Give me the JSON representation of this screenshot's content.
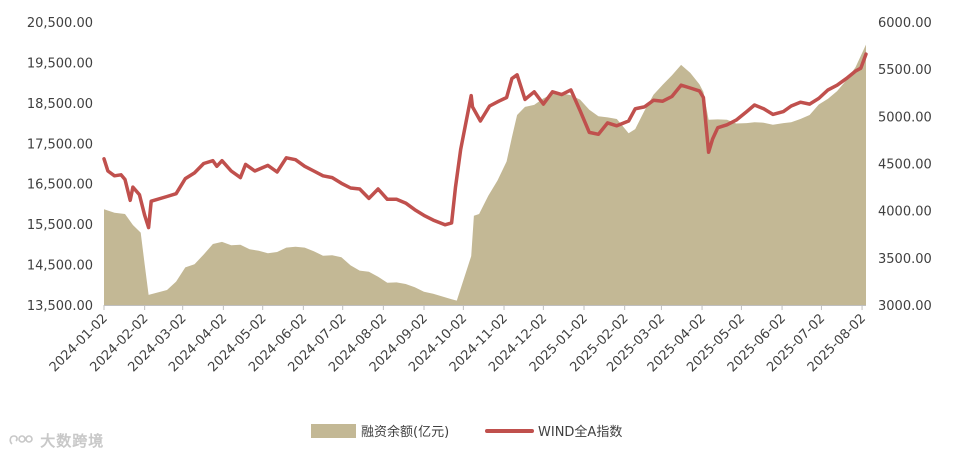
{
  "chart_data": {
    "type": "area+line",
    "title": "",
    "legend": {
      "placement": "bottom-center"
    },
    "grid": false,
    "x": [
      "2024-01-02",
      "2024-02-02",
      "2024-03-02",
      "2024-04-02",
      "2024-05-02",
      "2024-06-02",
      "2024-07-02",
      "2024-08-02",
      "2024-09-02",
      "2024-10-02",
      "2024-11-02",
      "2024-12-02",
      "2025-01-02",
      "2025-02-02",
      "2025-03-02",
      "2025-04-02",
      "2025-05-02",
      "2025-06-02",
      "2025-07-02",
      "2025-08-02"
    ],
    "x_range": [
      "2024-01-02",
      "2025-08-05"
    ],
    "y_left": {
      "min": 13500,
      "max": 20500,
      "ticks": [
        "13,500.00",
        "14,500.00",
        "15,500.00",
        "16,500.00",
        "17,500.00",
        "18,500.00",
        "19,500.00",
        "20,500.00"
      ]
    },
    "y_right": {
      "min": 3000,
      "max": 6000,
      "ticks": [
        "3000.00",
        "3500.00",
        "4000.00",
        "4500.00",
        "5000.00",
        "5500.00",
        "6000.00"
      ]
    },
    "series": [
      {
        "name": "融资余额(亿元)",
        "kind": "area",
        "axis": "left",
        "color": "#c3b895",
        "points": [
          [
            "2024-01-02",
            15870
          ],
          [
            "2024-01-10",
            15780
          ],
          [
            "2024-01-18",
            15750
          ],
          [
            "2024-01-24",
            15480
          ],
          [
            "2024-01-30",
            15290
          ],
          [
            "2024-02-02",
            14500
          ],
          [
            "2024-02-05",
            13750
          ],
          [
            "2024-02-19",
            13870
          ],
          [
            "2024-02-26",
            14080
          ],
          [
            "2024-03-04",
            14430
          ],
          [
            "2024-03-11",
            14510
          ],
          [
            "2024-03-18",
            14750
          ],
          [
            "2024-03-25",
            15010
          ],
          [
            "2024-04-01",
            15060
          ],
          [
            "2024-04-08",
            14980
          ],
          [
            "2024-04-15",
            14990
          ],
          [
            "2024-04-22",
            14880
          ],
          [
            "2024-04-29",
            14840
          ],
          [
            "2024-05-06",
            14780
          ],
          [
            "2024-05-13",
            14810
          ],
          [
            "2024-05-20",
            14920
          ],
          [
            "2024-05-27",
            14940
          ],
          [
            "2024-06-03",
            14920
          ],
          [
            "2024-06-10",
            14830
          ],
          [
            "2024-06-17",
            14720
          ],
          [
            "2024-06-24",
            14730
          ],
          [
            "2024-07-01",
            14680
          ],
          [
            "2024-07-08",
            14480
          ],
          [
            "2024-07-15",
            14350
          ],
          [
            "2024-07-22",
            14320
          ],
          [
            "2024-07-29",
            14200
          ],
          [
            "2024-08-05",
            14050
          ],
          [
            "2024-08-12",
            14060
          ],
          [
            "2024-08-19",
            14020
          ],
          [
            "2024-08-26",
            13940
          ],
          [
            "2024-09-02",
            13830
          ],
          [
            "2024-09-09",
            13780
          ],
          [
            "2024-09-16",
            13710
          ],
          [
            "2024-09-23",
            13640
          ],
          [
            "2024-09-27",
            13610
          ],
          [
            "2024-10-08",
            14710
          ],
          [
            "2024-10-10",
            15710
          ],
          [
            "2024-10-14",
            15750
          ],
          [
            "2024-10-21",
            16200
          ],
          [
            "2024-10-28",
            16580
          ],
          [
            "2024-11-04",
            17050
          ],
          [
            "2024-11-08",
            17650
          ],
          [
            "2024-11-12",
            18200
          ],
          [
            "2024-11-18",
            18400
          ],
          [
            "2024-11-25",
            18450
          ],
          [
            "2024-12-02",
            18610
          ],
          [
            "2024-12-09",
            18720
          ],
          [
            "2024-12-16",
            18740
          ],
          [
            "2024-12-23",
            18690
          ],
          [
            "2024-12-30",
            18580
          ],
          [
            "2025-01-06",
            18330
          ],
          [
            "2025-01-13",
            18170
          ],
          [
            "2025-01-20",
            18140
          ],
          [
            "2025-01-27",
            18100
          ],
          [
            "2025-02-05",
            17750
          ],
          [
            "2025-02-10",
            17850
          ],
          [
            "2025-02-17",
            18300
          ],
          [
            "2025-02-24",
            18700
          ],
          [
            "2025-03-03",
            18950
          ],
          [
            "2025-03-10",
            19180
          ],
          [
            "2025-03-17",
            19440
          ],
          [
            "2025-03-24",
            19240
          ],
          [
            "2025-03-31",
            18960
          ],
          [
            "2025-04-03",
            18770
          ],
          [
            "2025-04-07",
            18080
          ],
          [
            "2025-04-14",
            18090
          ],
          [
            "2025-04-21",
            18080
          ],
          [
            "2025-04-28",
            17990
          ],
          [
            "2025-05-06",
            18000
          ],
          [
            "2025-05-12",
            18020
          ],
          [
            "2025-05-19",
            18010
          ],
          [
            "2025-05-26",
            17960
          ],
          [
            "2025-06-03",
            18000
          ],
          [
            "2025-06-09",
            18020
          ],
          [
            "2025-06-16",
            18100
          ],
          [
            "2025-06-23",
            18200
          ],
          [
            "2025-06-30",
            18460
          ],
          [
            "2025-07-07",
            18600
          ],
          [
            "2025-07-14",
            18790
          ],
          [
            "2025-07-21",
            19060
          ],
          [
            "2025-07-28",
            19380
          ],
          [
            "2025-08-05",
            19940
          ]
        ]
      },
      {
        "name": "WIND全A指数",
        "kind": "line",
        "axis": "right",
        "color": "#c0504d",
        "points": [
          [
            "2024-01-02",
            4550
          ],
          [
            "2024-01-05",
            4420
          ],
          [
            "2024-01-10",
            4370
          ],
          [
            "2024-01-15",
            4380
          ],
          [
            "2024-01-18",
            4330
          ],
          [
            "2024-01-22",
            4110
          ],
          [
            "2024-01-24",
            4250
          ],
          [
            "2024-01-29",
            4170
          ],
          [
            "2024-02-02",
            3950
          ],
          [
            "2024-02-05",
            3820
          ],
          [
            "2024-02-07",
            4100
          ],
          [
            "2024-02-19",
            4150
          ],
          [
            "2024-02-26",
            4180
          ],
          [
            "2024-03-04",
            4340
          ],
          [
            "2024-03-11",
            4400
          ],
          [
            "2024-03-18",
            4500
          ],
          [
            "2024-03-25",
            4530
          ],
          [
            "2024-03-28",
            4470
          ],
          [
            "2024-04-01",
            4530
          ],
          [
            "2024-04-08",
            4420
          ],
          [
            "2024-04-15",
            4350
          ],
          [
            "2024-04-19",
            4490
          ],
          [
            "2024-04-26",
            4420
          ],
          [
            "2024-05-06",
            4480
          ],
          [
            "2024-05-13",
            4410
          ],
          [
            "2024-05-20",
            4560
          ],
          [
            "2024-05-27",
            4540
          ],
          [
            "2024-06-03",
            4470
          ],
          [
            "2024-06-10",
            4420
          ],
          [
            "2024-06-17",
            4370
          ],
          [
            "2024-06-24",
            4350
          ],
          [
            "2024-07-01",
            4290
          ],
          [
            "2024-07-08",
            4240
          ],
          [
            "2024-07-15",
            4230
          ],
          [
            "2024-07-22",
            4130
          ],
          [
            "2024-07-29",
            4230
          ],
          [
            "2024-08-05",
            4120
          ],
          [
            "2024-08-12",
            4120
          ],
          [
            "2024-08-19",
            4080
          ],
          [
            "2024-08-26",
            4010
          ],
          [
            "2024-09-02",
            3950
          ],
          [
            "2024-09-09",
            3900
          ],
          [
            "2024-09-18",
            3850
          ],
          [
            "2024-09-23",
            3870
          ],
          [
            "2024-09-26",
            4250
          ],
          [
            "2024-09-30",
            4650
          ],
          [
            "2024-10-08",
            5220
          ],
          [
            "2024-10-09",
            5100
          ],
          [
            "2024-10-15",
            4950
          ],
          [
            "2024-10-22",
            5110
          ],
          [
            "2024-10-29",
            5160
          ],
          [
            "2024-11-04",
            5200
          ],
          [
            "2024-11-08",
            5400
          ],
          [
            "2024-11-12",
            5440
          ],
          [
            "2024-11-18",
            5180
          ],
          [
            "2024-11-25",
            5260
          ],
          [
            "2024-12-02",
            5130
          ],
          [
            "2024-12-09",
            5260
          ],
          [
            "2024-12-16",
            5230
          ],
          [
            "2024-12-23",
            5280
          ],
          [
            "2024-12-30",
            5060
          ],
          [
            "2025-01-06",
            4830
          ],
          [
            "2025-01-13",
            4810
          ],
          [
            "2025-01-20",
            4930
          ],
          [
            "2025-01-27",
            4900
          ],
          [
            "2025-02-05",
            4950
          ],
          [
            "2025-02-10",
            5080
          ],
          [
            "2025-02-17",
            5100
          ],
          [
            "2025-02-24",
            5170
          ],
          [
            "2025-03-03",
            5160
          ],
          [
            "2025-03-10",
            5210
          ],
          [
            "2025-03-17",
            5330
          ],
          [
            "2025-03-24",
            5300
          ],
          [
            "2025-03-31",
            5270
          ],
          [
            "2025-04-03",
            5200
          ],
          [
            "2025-04-07",
            4620
          ],
          [
            "2025-04-10",
            4760
          ],
          [
            "2025-04-14",
            4880
          ],
          [
            "2025-04-21",
            4910
          ],
          [
            "2025-04-28",
            4960
          ],
          [
            "2025-05-06",
            5050
          ],
          [
            "2025-05-12",
            5120
          ],
          [
            "2025-05-19",
            5080
          ],
          [
            "2025-05-26",
            5020
          ],
          [
            "2025-06-03",
            5050
          ],
          [
            "2025-06-09",
            5110
          ],
          [
            "2025-06-16",
            5150
          ],
          [
            "2025-06-23",
            5130
          ],
          [
            "2025-06-30",
            5190
          ],
          [
            "2025-07-07",
            5280
          ],
          [
            "2025-07-14",
            5330
          ],
          [
            "2025-07-21",
            5400
          ],
          [
            "2025-07-28",
            5480
          ],
          [
            "2025-08-01",
            5510
          ],
          [
            "2025-08-05",
            5660
          ]
        ]
      }
    ]
  },
  "watermark": {
    "text": "大数跨境"
  }
}
